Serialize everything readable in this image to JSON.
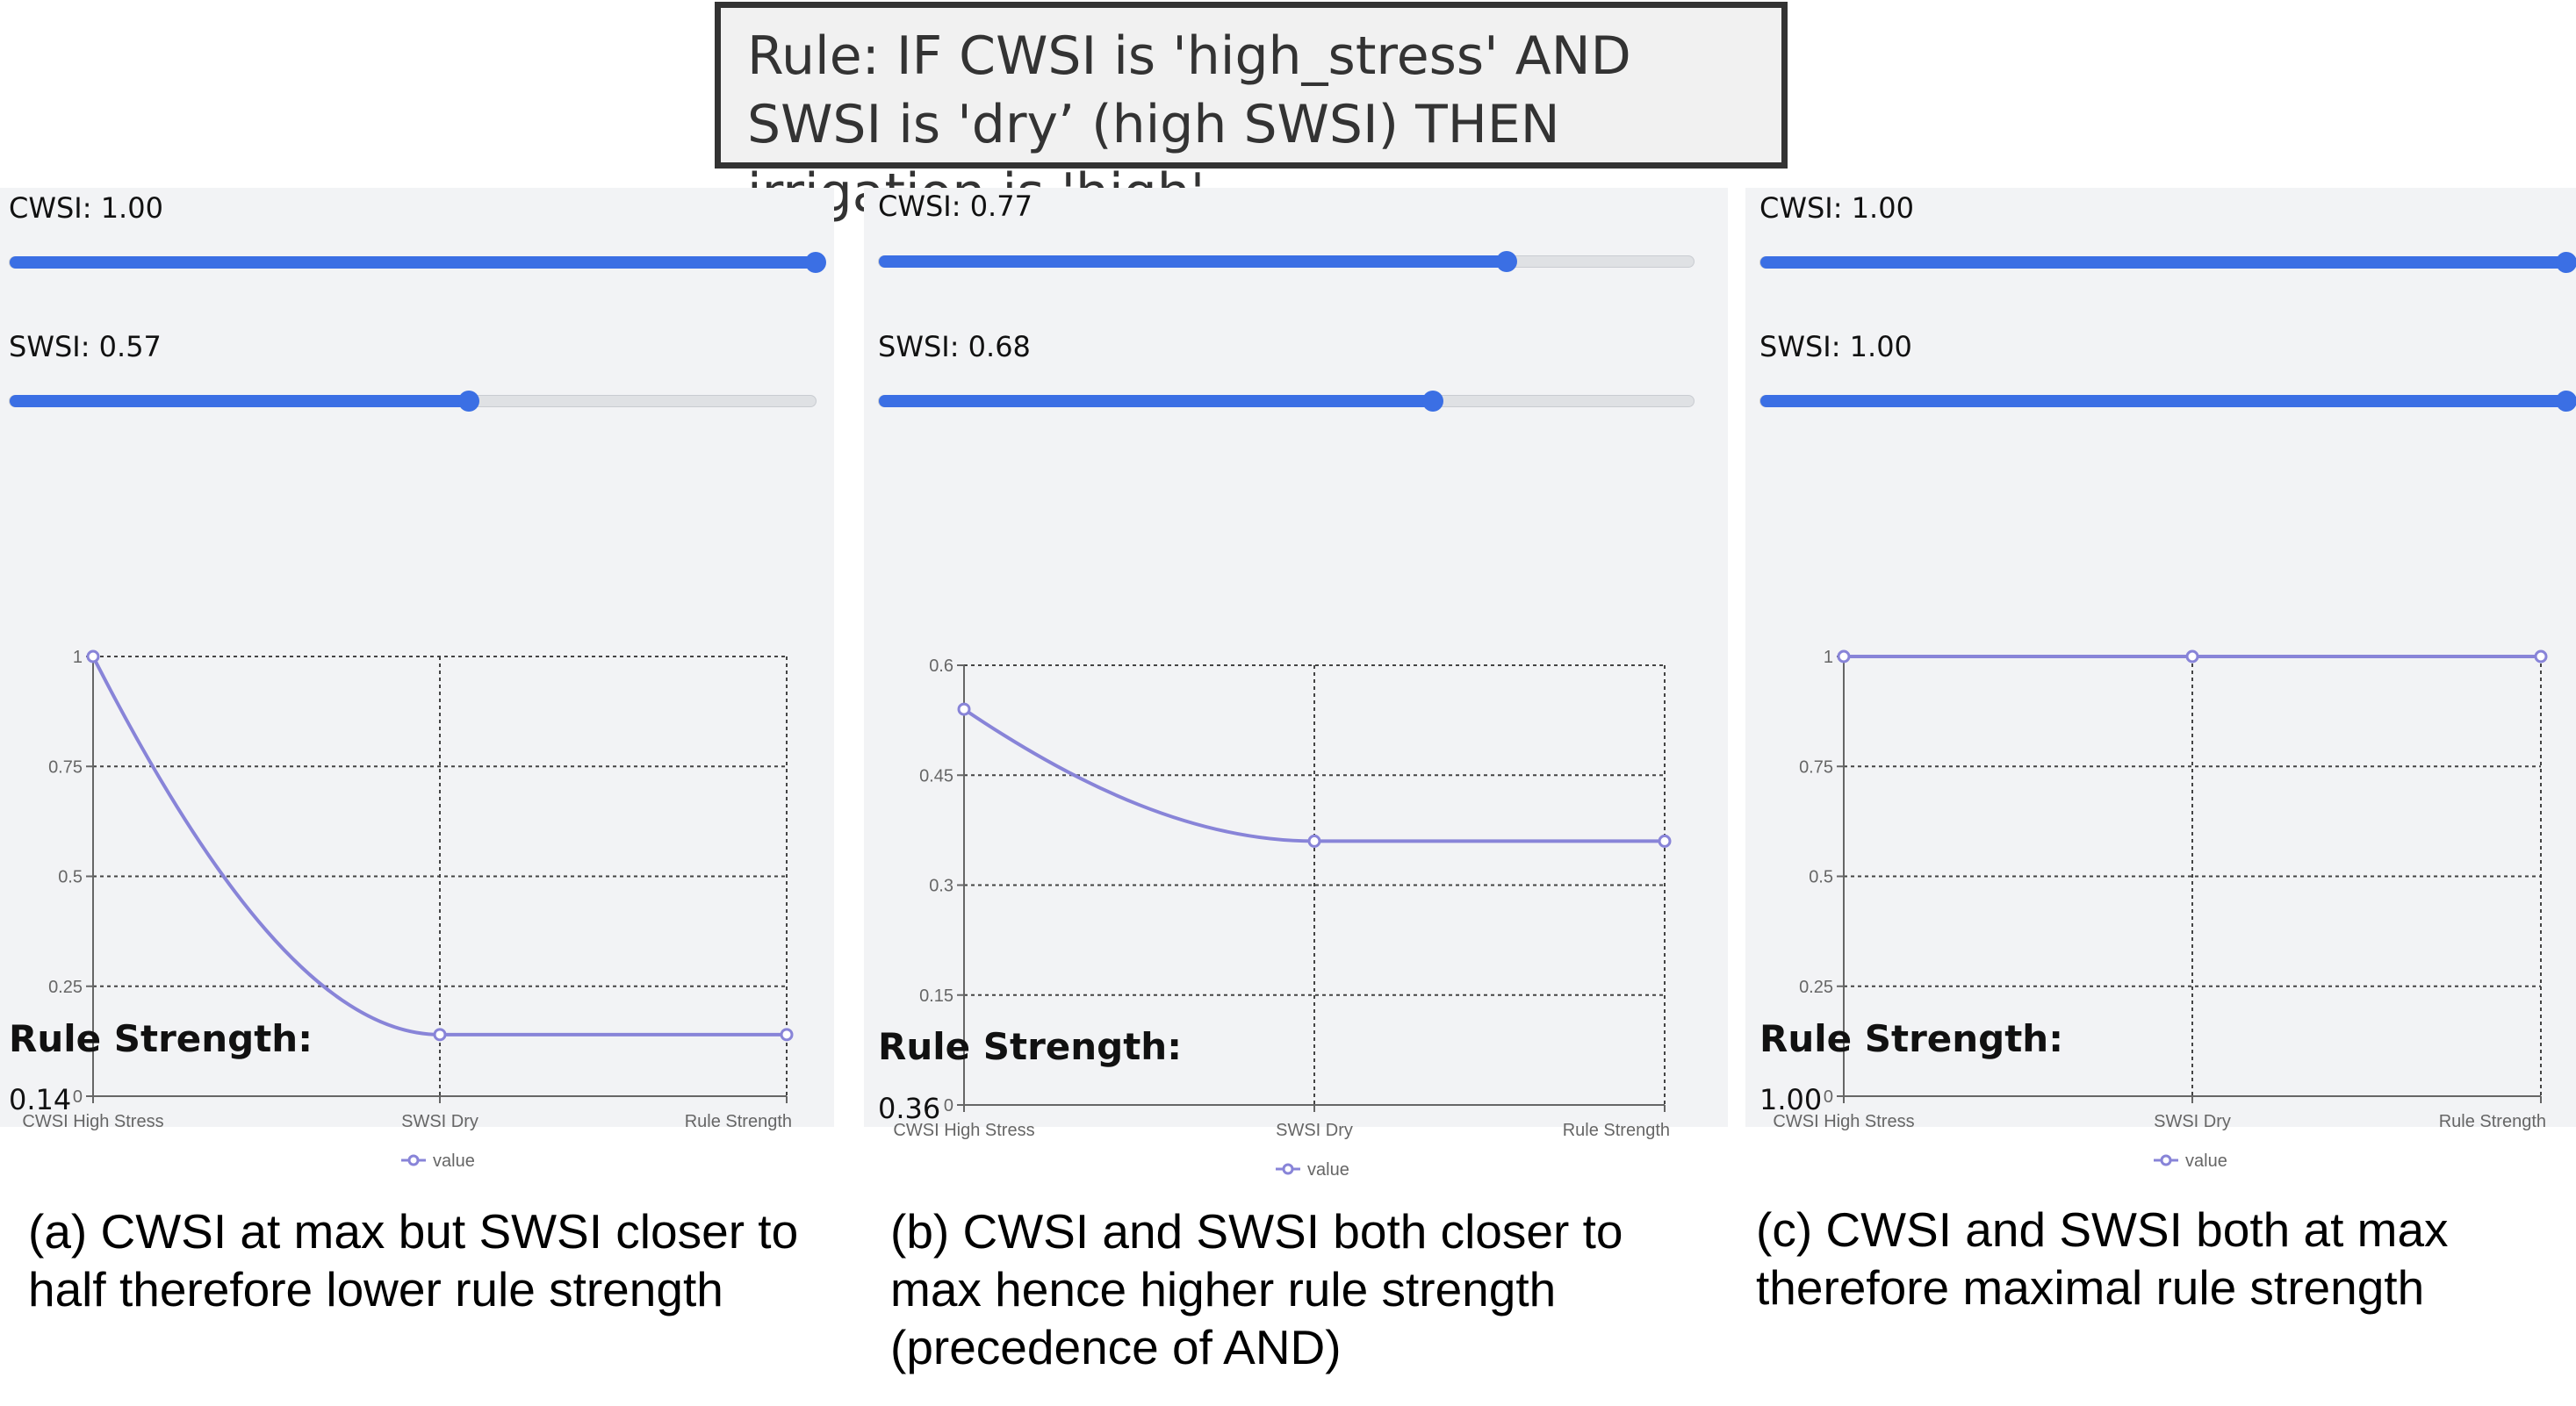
{
  "rule_text": "Rule: IF CWSI is 'high_stress' AND SWSI is 'dry’ (high SWSI) THEN irrigation is 'high'",
  "rule_strength_title": "Rule Strength:",
  "panels": [
    {
      "cwsi_label": "CWSI: 1.00",
      "cwsi_value": 1.0,
      "swsi_label": "SWSI: 0.57",
      "swsi_value": 0.57,
      "rule_strength": "0.14",
      "caption": "(a) CWSI at max but SWSI closer to half therefore lower rule strength",
      "chart_data": {
        "type": "line",
        "categories": [
          "CWSI High Stress",
          "SWSI Dry",
          "Rule Strength"
        ],
        "series": [
          {
            "name": "value",
            "values": [
              1.0,
              0.14,
              0.14
            ]
          }
        ],
        "ylim": [
          0,
          1
        ],
        "yticks": [
          "0",
          "0.25",
          "0.5",
          "0.75",
          "1"
        ],
        "grid": true,
        "legend": "bottom"
      }
    },
    {
      "cwsi_label": "CWSI: 0.77",
      "cwsi_value": 0.77,
      "swsi_label": "SWSI: 0.68",
      "swsi_value": 0.68,
      "rule_strength": "0.36",
      "caption": "(b) CWSI and SWSI both closer to max hence higher rule strength (precedence of AND)",
      "chart_data": {
        "type": "line",
        "categories": [
          "CWSI High Stress",
          "SWSI Dry",
          "Rule Strength"
        ],
        "series": [
          {
            "name": "value",
            "values": [
              0.54,
              0.36,
              0.36
            ]
          }
        ],
        "ylim": [
          0,
          0.6
        ],
        "yticks": [
          "0",
          "0.15",
          "0.3",
          "0.45",
          "0.6"
        ],
        "grid": true,
        "legend": "bottom"
      }
    },
    {
      "cwsi_label": "CWSI: 1.00",
      "cwsi_value": 1.0,
      "swsi_label": "SWSI: 1.00",
      "swsi_value": 1.0,
      "rule_strength": "1.00",
      "caption": "(c) CWSI and SWSI both at max therefore maximal rule strength",
      "chart_data": {
        "type": "line",
        "categories": [
          "CWSI High Stress",
          "SWSI Dry",
          "Rule Strength"
        ],
        "series": [
          {
            "name": "value",
            "values": [
              1.0,
              1.0,
              1.0
            ]
          }
        ],
        "ylim": [
          0,
          1
        ],
        "yticks": [
          "0",
          "0.25",
          "0.5",
          "0.75",
          "1"
        ],
        "grid": true,
        "legend": "bottom"
      }
    }
  ],
  "colors": {
    "accent": "#3b6fe4",
    "line": "#8884d8",
    "panel": "#f2f3f5"
  }
}
